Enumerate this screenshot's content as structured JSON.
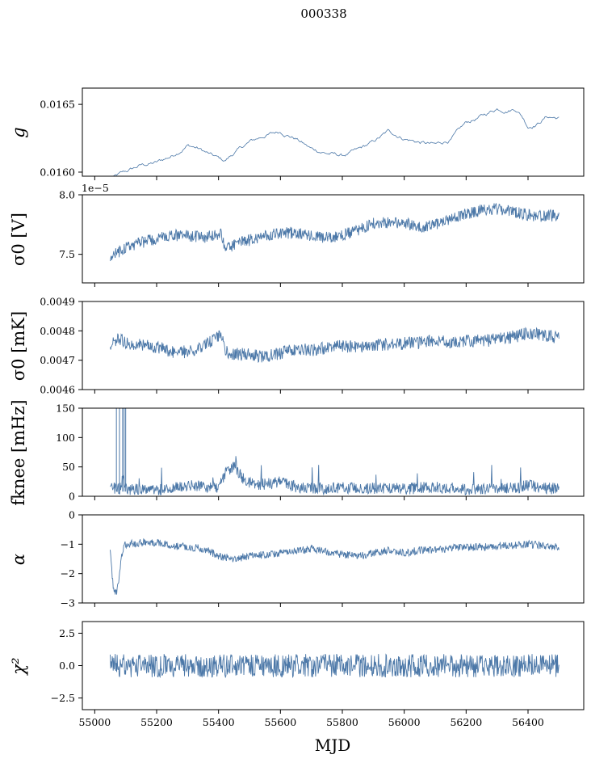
{
  "figure_title": "000338",
  "chart_data": [
    {
      "type": "line",
      "ylabel": "g",
      "ylim": [
        0.01597,
        0.01662
      ],
      "yticks": [
        0.016,
        0.0165
      ],
      "ytick_labels": [
        "0.0160",
        "0.0165"
      ],
      "x": [
        55050,
        55080,
        55100,
        55150,
        55200,
        55250,
        55300,
        55330,
        55380,
        55420,
        55450,
        55500,
        55550,
        55600,
        55650,
        55700,
        55750,
        55800,
        55850,
        55900,
        55950,
        56000,
        56050,
        56100,
        56150,
        56200,
        56250,
        56300,
        56330,
        56360,
        56380,
        56400,
        56430,
        56460,
        56500
      ],
      "values": [
        0.01595,
        0.01598,
        0.016,
        0.01605,
        0.01607,
        0.01612,
        0.0162,
        0.01618,
        0.01612,
        0.01608,
        0.01614,
        0.01622,
        0.01627,
        0.0163,
        0.01625,
        0.01617,
        0.01614,
        0.01612,
        0.01616,
        0.01622,
        0.0163,
        0.01625,
        0.01622,
        0.0162,
        0.01624,
        0.01636,
        0.01641,
        0.01647,
        0.01646,
        0.01647,
        0.01642,
        0.01634,
        0.01636,
        0.01641,
        0.0164
      ],
      "noise": 1.2e-05,
      "stroke": "thin"
    },
    {
      "type": "line",
      "ylabel": "σ0 [V]",
      "ylim": [
        7.26e-05,
        8e-05
      ],
      "yticks": [
        7.5e-05,
        8e-05
      ],
      "ytick_labels": [
        "7.5",
        "8.0"
      ],
      "offset_text": "1e−5",
      "x": [
        55050,
        55100,
        55150,
        55200,
        55250,
        55300,
        55350,
        55410,
        55420,
        55450,
        55500,
        55550,
        55600,
        55650,
        55700,
        55750,
        55800,
        55850,
        55900,
        55950,
        56000,
        56050,
        56100,
        56150,
        56200,
        56250,
        56300,
        56350,
        56400,
        56450,
        56500
      ],
      "values": [
        7.48e-05,
        7.55e-05,
        7.6e-05,
        7.63e-05,
        7.66e-05,
        7.66e-05,
        7.64e-05,
        7.67e-05,
        7.54e-05,
        7.58e-05,
        7.62e-05,
        7.66e-05,
        7.68e-05,
        7.68e-05,
        7.65e-05,
        7.64e-05,
        7.66e-05,
        7.7e-05,
        7.76e-05,
        7.77e-05,
        7.76e-05,
        7.73e-05,
        7.75e-05,
        7.79e-05,
        7.84e-05,
        7.87e-05,
        7.88e-05,
        7.86e-05,
        7.83e-05,
        7.82e-05,
        7.83e-05
      ],
      "noise": 5e-07,
      "stroke": "band"
    },
    {
      "type": "line",
      "ylabel": "σ0 [mK]",
      "ylim": [
        0.0046,
        0.0049
      ],
      "yticks": [
        0.0046,
        0.0047,
        0.0048,
        0.0049
      ],
      "ytick_labels": [
        "0.0046",
        "0.0047",
        "0.0048",
        "0.0049"
      ],
      "x": [
        55050,
        55080,
        55100,
        55150,
        55200,
        55250,
        55300,
        55350,
        55410,
        55420,
        55450,
        55500,
        55550,
        55600,
        55650,
        55700,
        55750,
        55800,
        55850,
        55900,
        55950,
        56000,
        56050,
        56100,
        56150,
        56200,
        56250,
        56300,
        56350,
        56400,
        56450,
        56500
      ],
      "values": [
        0.004752,
        0.004775,
        0.00476,
        0.004755,
        0.004745,
        0.00473,
        0.004728,
        0.00475,
        0.00479,
        0.00473,
        0.004722,
        0.004718,
        0.004712,
        0.004725,
        0.00474,
        0.004735,
        0.004742,
        0.004748,
        0.004745,
        0.00475,
        0.004755,
        0.004757,
        0.00476,
        0.004765,
        0.00476,
        0.004768,
        0.004765,
        0.00477,
        0.00478,
        0.00479,
        0.004785,
        0.004775
      ],
      "noise": 2.2e-05,
      "stroke": "band"
    },
    {
      "type": "line",
      "ylabel": "fknee [mHz]",
      "ylim": [
        0,
        150
      ],
      "yticks": [
        0,
        50,
        100,
        150
      ],
      "ytick_labels": [
        "0",
        "50",
        "100",
        "150"
      ],
      "x": [
        55050,
        55080,
        55090,
        55100,
        55150,
        55200,
        55250,
        55300,
        55350,
        55400,
        55420,
        55450,
        55480,
        55500,
        55550,
        55600,
        55650,
        55700,
        55750,
        55800,
        55850,
        55900,
        55950,
        56000,
        56050,
        56100,
        56150,
        56200,
        56250,
        56300,
        56350,
        56400,
        56450,
        56500
      ],
      "values": [
        15,
        12,
        30,
        12,
        11,
        10,
        14,
        18,
        17,
        16,
        38,
        50,
        30,
        22,
        20,
        24,
        16,
        14,
        13,
        15,
        13,
        14,
        14,
        13,
        14,
        16,
        14,
        11,
        13,
        13,
        14,
        18,
        15,
        12
      ],
      "noise": 10,
      "stroke": "band"
    },
    {
      "type": "line",
      "ylabel": "α",
      "ylim": [
        -3,
        0
      ],
      "yticks": [
        -3,
        -2,
        -1,
        0
      ],
      "ytick_labels": [
        "−3",
        "−2",
        "−1",
        "0"
      ],
      "x": [
        55050,
        55060,
        55070,
        55080,
        55090,
        55100,
        55150,
        55200,
        55250,
        55300,
        55350,
        55400,
        55450,
        55500,
        55550,
        55600,
        55650,
        55700,
        55750,
        55800,
        55850,
        55900,
        55950,
        56000,
        56050,
        56100,
        56150,
        56200,
        56250,
        56300,
        56350,
        56400,
        56450,
        56500
      ],
      "values": [
        -1.3,
        -2.5,
        -2.7,
        -2.0,
        -1.2,
        -1.0,
        -0.95,
        -0.95,
        -1.05,
        -1.1,
        -1.15,
        -1.4,
        -1.5,
        -1.4,
        -1.35,
        -1.3,
        -1.25,
        -1.15,
        -1.25,
        -1.35,
        -1.4,
        -1.3,
        -1.2,
        -1.3,
        -1.2,
        -1.2,
        -1.15,
        -1.1,
        -1.1,
        -1.05,
        -1.05,
        -1.0,
        -1.05,
        -1.1
      ],
      "noise": 0.13,
      "stroke": "band"
    },
    {
      "type": "line",
      "ylabel": "χ²",
      "ylim": [
        -3.4,
        3.4
      ],
      "yticks": [
        -2.5,
        0,
        2.5
      ],
      "ytick_labels": [
        "−2.5",
        "0.0",
        "2.5"
      ],
      "x": [
        55050,
        55080,
        55100,
        55200,
        55300,
        55400,
        55500,
        55600,
        55700,
        55800,
        55900,
        56000,
        56100,
        56200,
        56300,
        56400,
        56500
      ],
      "values": [
        0,
        0,
        0,
        0,
        0,
        0,
        0,
        0,
        0,
        0,
        0,
        0,
        0,
        0,
        0,
        0,
        0
      ],
      "noise": 0.9,
      "stroke": "band"
    }
  ],
  "xaxis": {
    "label": "MJD",
    "xlim": [
      54960,
      56580
    ],
    "ticks": [
      55000,
      55200,
      55400,
      55600,
      55800,
      56000,
      56200,
      56400
    ],
    "tick_labels": [
      "55000",
      "55200",
      "55400",
      "55600",
      "55800",
      "56000",
      "56200",
      "56400"
    ]
  },
  "colors": {
    "line": "#4c78a8",
    "axis": "#000000"
  }
}
